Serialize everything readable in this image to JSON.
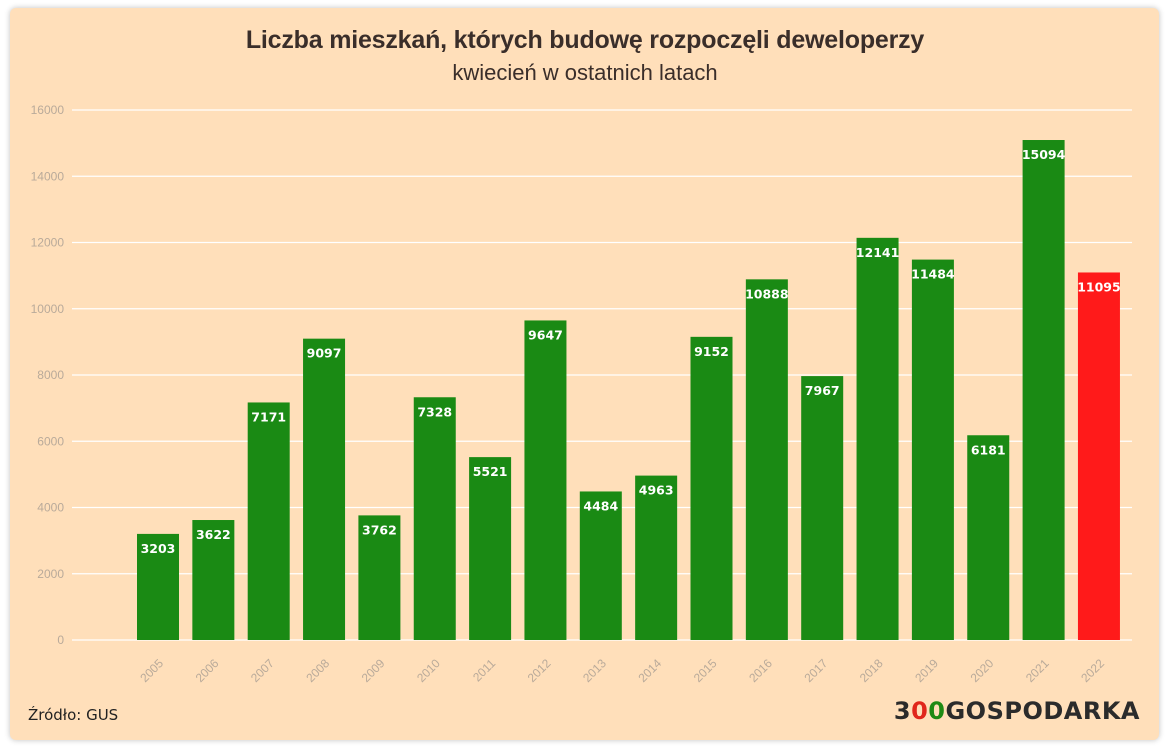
{
  "chart_data": {
    "type": "bar",
    "title": "Liczba mieszkań, których budowę rozpoczęli deweloperzy",
    "subtitle": "kwiecień w ostatnich latach",
    "categories": [
      "2005",
      "2006",
      "2007",
      "2008",
      "2009",
      "2010",
      "2011",
      "2012",
      "2013",
      "2014",
      "2015",
      "2016",
      "2017",
      "2018",
      "2019",
      "2020",
      "2021",
      "2022"
    ],
    "values": [
      3203,
      3622,
      7171,
      9097,
      3762,
      7328,
      5521,
      9647,
      4484,
      4963,
      9152,
      10888,
      7967,
      12141,
      11484,
      6181,
      15094,
      11095
    ],
    "value_labels": [
      "3203",
      "3622",
      "7171",
      "9097",
      "3762",
      "7328",
      "5521",
      "9647",
      "4484",
      "4963",
      "9152",
      "10888",
      "7967",
      "12141",
      "11484",
      "6181",
      "15094",
      "11095"
    ],
    "y_ticks": [
      "0",
      "2000",
      "4000",
      "6000",
      "8000",
      "10000",
      "12000",
      "14000",
      "16000"
    ],
    "ylim": [
      0,
      16000
    ],
    "grid": true,
    "colors": {
      "bar": "#1a8a14",
      "highlight": "#ff1a1a",
      "background": "#ffdfba",
      "grid": "#ffffff"
    },
    "highlight_category": "2022",
    "xlabel": "",
    "ylabel": ""
  },
  "footer": {
    "source": "Źródło: GUS",
    "logo_a": "3",
    "logo_b": "0",
    "logo_c": "0",
    "logo_d": "GOSPODARKA"
  }
}
